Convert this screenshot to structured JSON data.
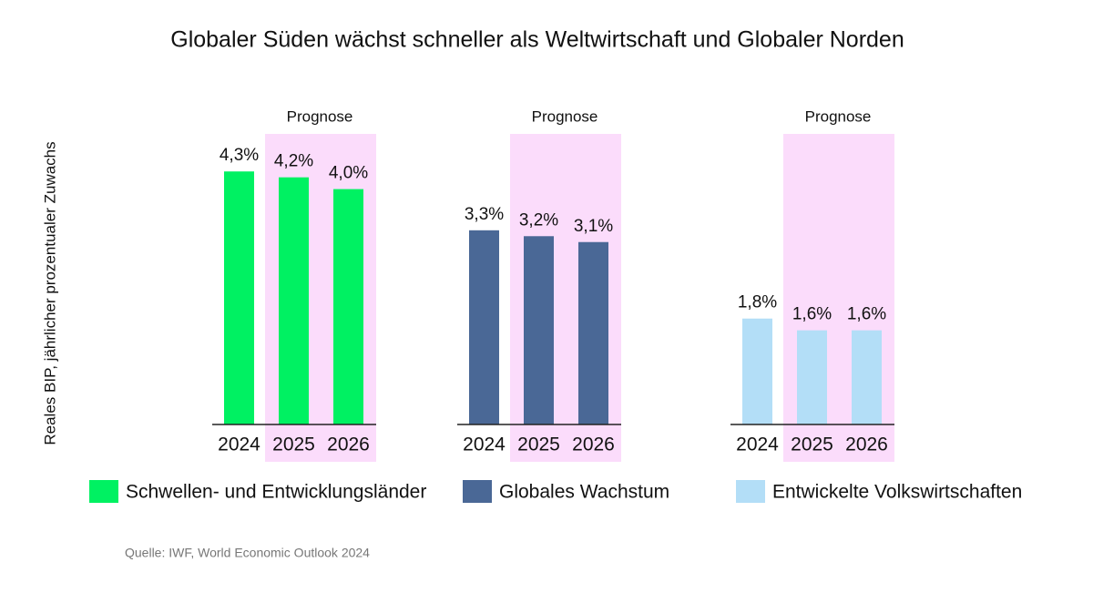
{
  "title": "Globaler Süden wächst schneller als Weltwirtschaft und Globaler Norden",
  "y_label": "Reales BIP, jährlicher prozentualer Zuwachs",
  "source": "Quelle: IWF, World Economic Outlook 2024",
  "chart_data": [
    {
      "type": "bar",
      "categories": [
        "2024",
        "2025",
        "2026"
      ],
      "ylim": [
        0,
        5
      ],
      "highlight": {
        "label": "Prognose",
        "color": "#fbdcfb",
        "first": 1
      },
      "series": [
        {
          "name": "Schwellen- und Entwicklungsländer",
          "color": "#00f162",
          "values": [
            4.3,
            4.2,
            4.0
          ],
          "value_labels": [
            "4,3%",
            "4,2%",
            "4,0%"
          ]
        }
      ]
    },
    {
      "type": "bar",
      "categories": [
        "2024",
        "2025",
        "2026"
      ],
      "ylim": [
        0,
        5
      ],
      "highlight": {
        "label": "Prognose",
        "color": "#fbdcfb",
        "first": 1
      },
      "series": [
        {
          "name": "Globales Wachstum",
          "color": "#4a6896",
          "values": [
            3.3,
            3.2,
            3.1
          ],
          "value_labels": [
            "3,3%",
            "3,2%",
            "3,1%"
          ]
        }
      ]
    },
    {
      "type": "bar",
      "categories": [
        "2024",
        "2025",
        "2026"
      ],
      "ylim": [
        0,
        5
      ],
      "highlight": {
        "label": "Prognose",
        "color": "#fbdcfb",
        "first": 1
      },
      "series": [
        {
          "name": "Entwickelte Volkswirtschaften",
          "color": "#b3def7",
          "values": [
            1.8,
            1.6,
            1.6
          ],
          "value_labels": [
            "1,8%",
            "1,6%",
            "1,6%"
          ]
        }
      ]
    }
  ]
}
